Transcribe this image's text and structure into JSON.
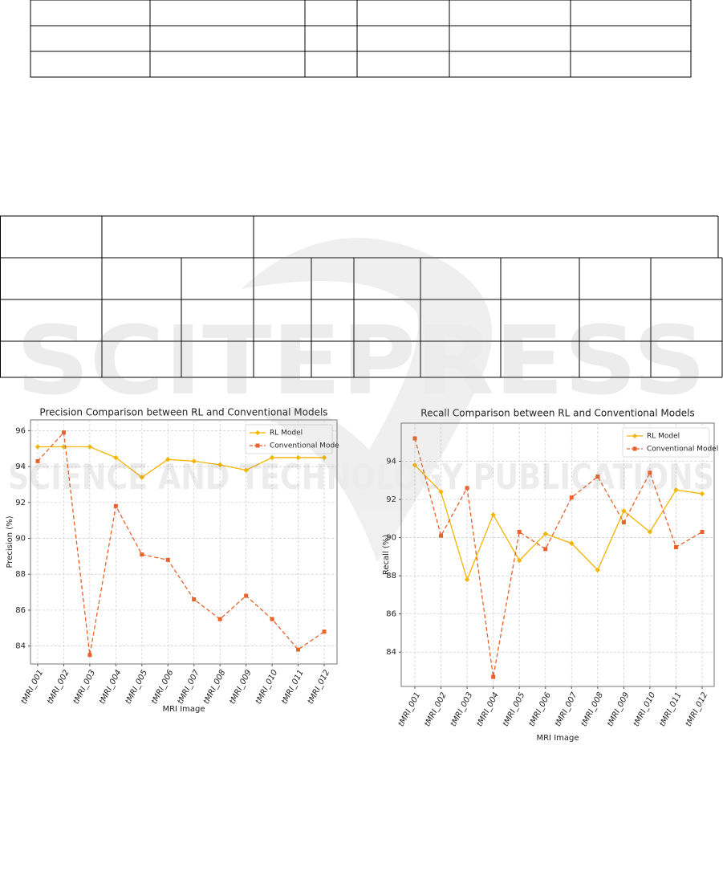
{
  "watermark": {
    "title": "SCITEPRESS",
    "subtitle": "SCIENCE AND TECHNOLOGY PUBLICATIONS"
  },
  "chart_data": [
    {
      "type": "line",
      "title": "Precision Comparison between RL and Conventional Models",
      "x_label": "MRI Image",
      "y_label": "Precision (%)",
      "categories": [
        "tMRI_001",
        "tMRI_002",
        "tMRI_003",
        "tMRI_004",
        "tMRI_005",
        "tMRI_006",
        "tMRI_007",
        "tMRI_008",
        "tMRI_009",
        "tMRI_010",
        "tMRI_011",
        "tMRI_012"
      ],
      "series": [
        {
          "name": "RL Model",
          "color": "#f5b400",
          "line_style": "solid",
          "marker": "diamond",
          "values": [
            95.1,
            95.1,
            95.1,
            94.5,
            93.4,
            94.4,
            94.3,
            94.1,
            93.8,
            94.5,
            94.5,
            94.5
          ]
        },
        {
          "name": "Conventional Mode",
          "color": "#e8622a",
          "line_style": "dashed",
          "marker": "square",
          "values": [
            94.3,
            95.9,
            83.5,
            91.8,
            89.1,
            88.8,
            86.6,
            85.5,
            86.8,
            85.5,
            83.8,
            84.8
          ]
        }
      ],
      "ylim": [
        83,
        96.6
      ],
      "yticks": [
        84,
        86,
        88,
        90,
        92,
        94,
        96
      ],
      "grid": true,
      "legend": "upper right"
    },
    {
      "type": "line",
      "title": "Recall Comparison between RL and Conventional Models",
      "x_label": "MRI Image",
      "y_label": "Recall (%)",
      "categories": [
        "tMRI_001",
        "tMRI_002",
        "tMRI_003",
        "tMRI_004",
        "tMRI_005",
        "tMRI_006",
        "tMRI_007",
        "tMRI_008",
        "tMRI_009",
        "tMRI_010",
        "tMRI_011",
        "tMRI_012"
      ],
      "series": [
        {
          "name": "RL Model",
          "color": "#f5b400",
          "line_style": "solid",
          "marker": "diamond",
          "values": [
            93.8,
            92.4,
            87.8,
            91.2,
            88.8,
            90.2,
            89.7,
            88.3,
            91.4,
            90.3,
            92.5,
            92.3
          ]
        },
        {
          "name": "Conventional Model",
          "color": "#e8622a",
          "line_style": "dashed",
          "marker": "square",
          "values": [
            95.2,
            90.1,
            92.6,
            82.7,
            90.3,
            89.4,
            92.1,
            93.2,
            90.8,
            93.4,
            89.5,
            90.3
          ]
        }
      ],
      "ylim": [
        82.2,
        96
      ],
      "yticks": [
        84,
        86,
        88,
        90,
        92,
        94
      ],
      "grid": true,
      "legend": "upper right"
    }
  ]
}
